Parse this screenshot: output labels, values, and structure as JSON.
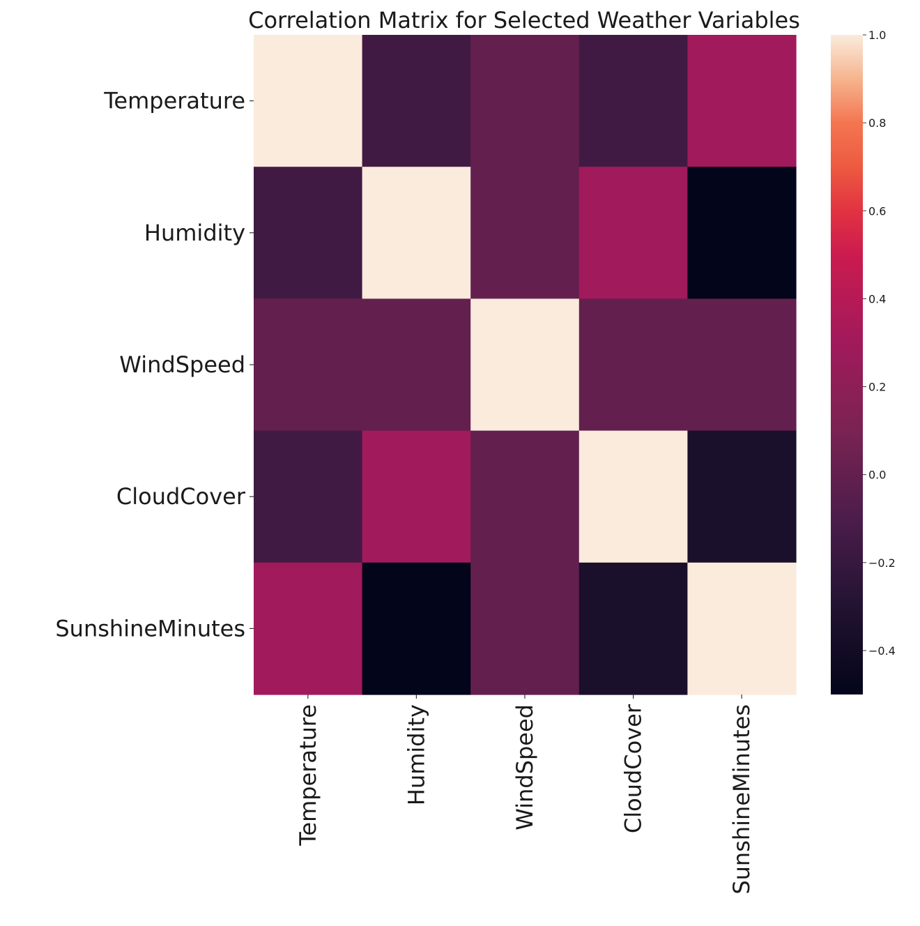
{
  "chart_data": {
    "type": "heatmap",
    "title": "Correlation Matrix for Selected Weather Variables",
    "xlabel": "",
    "ylabel": "",
    "rows": [
      "Temperature",
      "Humidity",
      "WindSpeed",
      "CloudCover",
      "SunshineMinutes"
    ],
    "columns": [
      "Temperature",
      "Humidity",
      "WindSpeed",
      "CloudCover",
      "SunshineMinutes"
    ],
    "values": [
      [
        1.0,
        -0.15,
        0.0,
        -0.15,
        0.3
      ],
      [
        -0.15,
        1.0,
        0.0,
        0.3,
        -0.5
      ],
      [
        0.0,
        0.0,
        1.0,
        0.0,
        0.0
      ],
      [
        -0.15,
        0.3,
        0.0,
        1.0,
        -0.35
      ],
      [
        0.3,
        -0.5,
        0.0,
        -0.35,
        1.0
      ]
    ],
    "colorbar": {
      "range": [
        -0.5,
        1.0
      ],
      "ticks": [
        1.0,
        0.8,
        0.6,
        0.4,
        0.2,
        0.0,
        -0.2,
        -0.4
      ],
      "tick_labels": [
        "1.0",
        "0.8",
        "0.6",
        "0.4",
        "0.2",
        "0.0",
        "−0.2",
        "−0.4"
      ],
      "colormap": "rocket"
    },
    "grid": false
  }
}
